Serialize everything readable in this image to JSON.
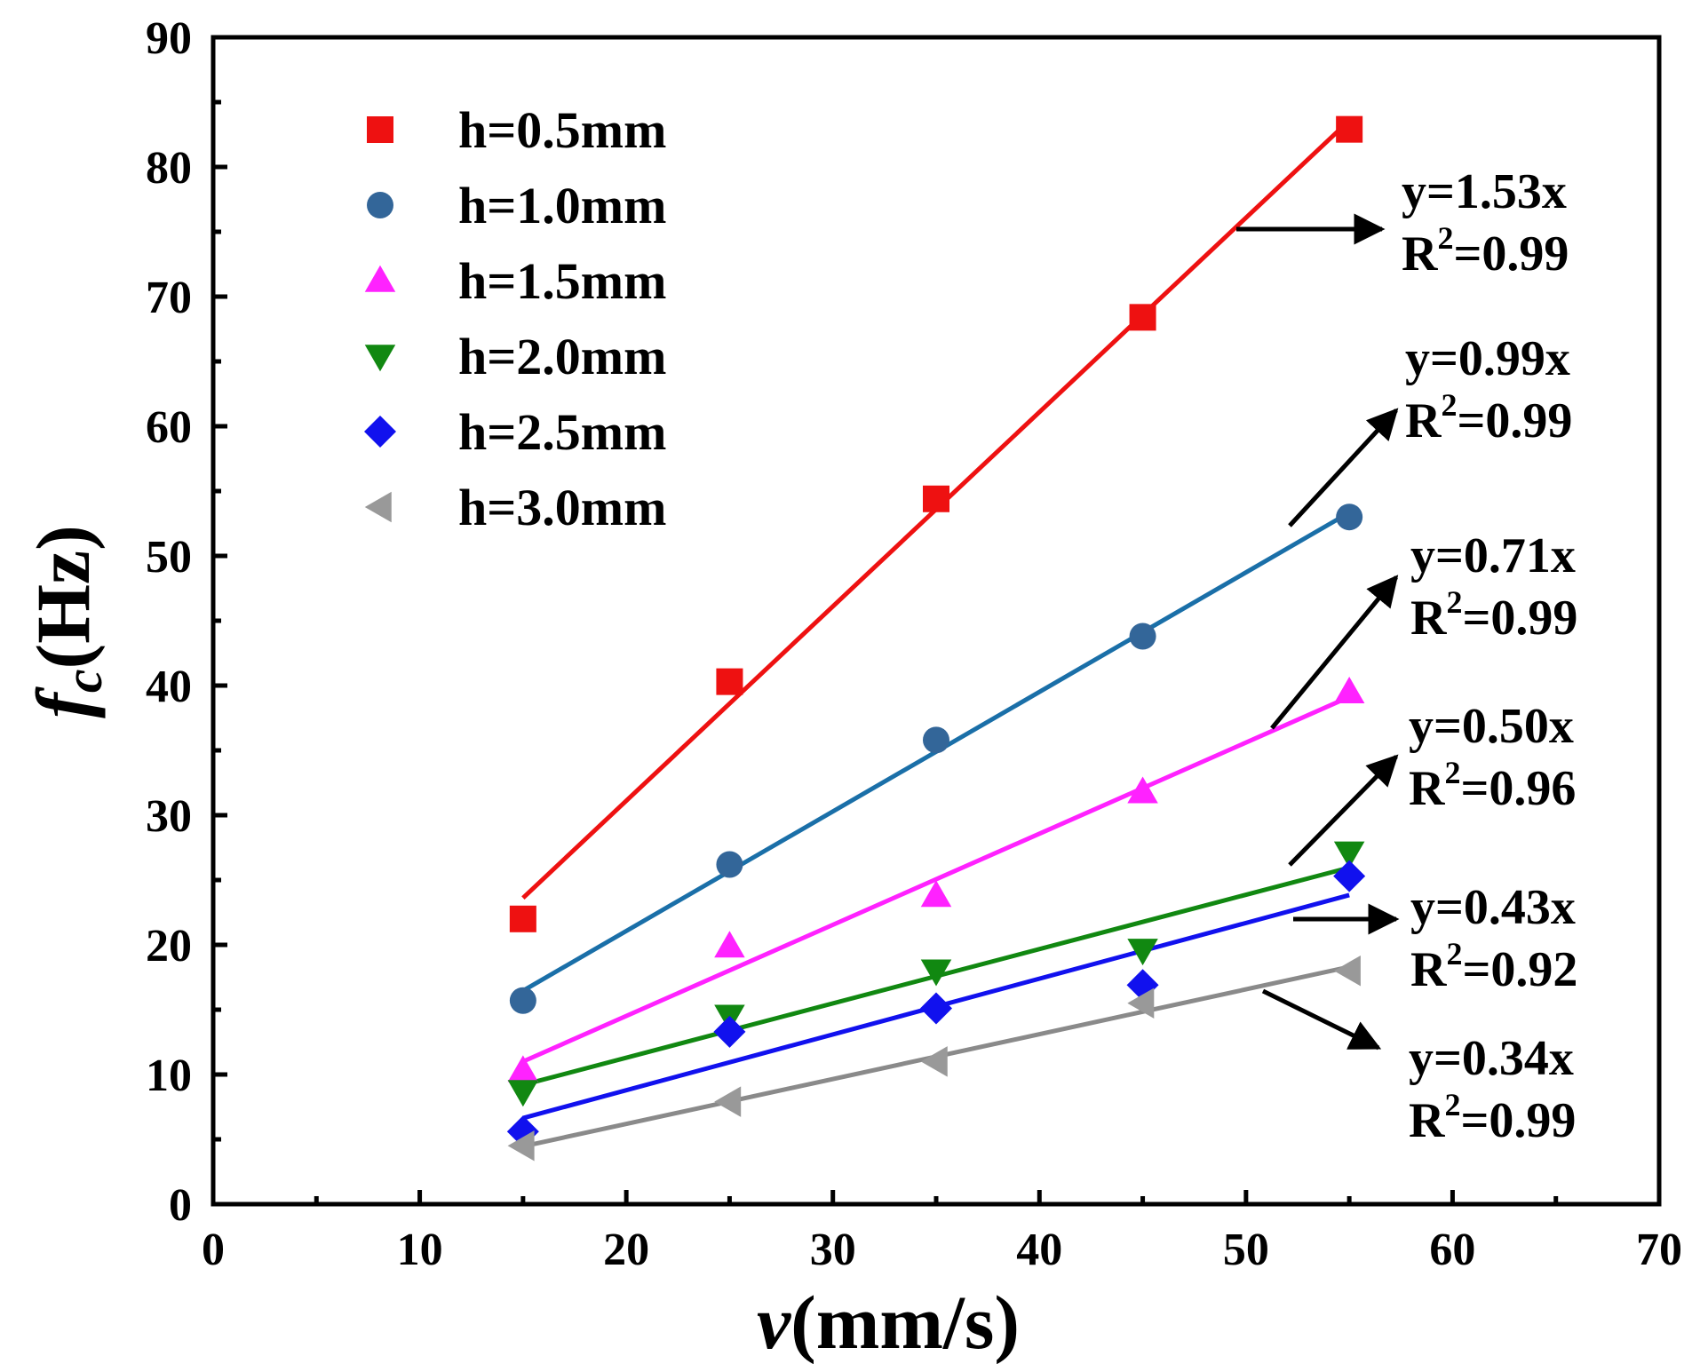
{
  "chart_data": {
    "type": "scatter",
    "title": "",
    "xlabel": {
      "var": "v",
      "unit": "(mm/s)"
    },
    "ylabel": {
      "var": "f",
      "sub": "c",
      "unit": "(Hz)"
    },
    "xlim": [
      0,
      70
    ],
    "ylim": [
      0,
      90
    ],
    "xticks": [
      0,
      10,
      20,
      30,
      40,
      50,
      60,
      70
    ],
    "yticks": [
      0,
      10,
      20,
      30,
      40,
      50,
      60,
      70,
      80,
      90
    ],
    "xtick_labels": [
      "0",
      "10",
      "20",
      "30",
      "40",
      "50",
      "60",
      "70"
    ],
    "ytick_labels": [
      "0",
      "10",
      "20",
      "30",
      "40",
      "50",
      "60",
      "70",
      "80",
      "90"
    ],
    "grid": false,
    "legend_position": "top-left",
    "x": [
      15,
      25,
      35,
      45,
      55
    ],
    "series": [
      {
        "name": "h=0.5mm",
        "marker": "square",
        "color": "#ee1111",
        "line_color": "#ee1111",
        "values": [
          22.0,
          40.3,
          54.4,
          68.4,
          82.9
        ],
        "fit_slope": 1.53,
        "fit_label": "y=1.53x",
        "r2_label": "R",
        "r2_value": "=0.99"
      },
      {
        "name": "h=1.0mm",
        "marker": "circle",
        "color": "#336699",
        "line_color": "#1a6fa8",
        "values": [
          15.7,
          26.2,
          35.8,
          43.8,
          53.0
        ],
        "fit_slope": 0.99,
        "fit_label": "y=0.99x",
        "r2_label": "R",
        "r2_value": "=0.99"
      },
      {
        "name": "h=1.5mm",
        "marker": "triangle-up",
        "color": "#ff22ff",
        "line_color": "#ff22ff",
        "values": [
          10.3,
          19.9,
          23.8,
          31.8,
          39.5
        ],
        "fit_slope": 0.71,
        "fit_label": "y=0.71x",
        "r2_label": "R",
        "r2_value": "=0.99"
      },
      {
        "name": "h=2.0mm",
        "marker": "triangle-down",
        "color": "#118811",
        "line_color": "#118811",
        "values": [
          8.7,
          14.5,
          18.0,
          19.6,
          27.1
        ],
        "fit_slope": 0.5,
        "fit_label": "y=0.50x",
        "r2_label": "R",
        "r2_value": "=0.96"
      },
      {
        "name": "h=2.5mm",
        "marker": "diamond",
        "color": "#1111ee",
        "line_color": "#1111ee",
        "values": [
          5.6,
          13.3,
          15.1,
          16.9,
          25.3
        ],
        "fit_slope": 0.43,
        "fit_label": "y=0.43x",
        "r2_label": "R",
        "r2_value": "=0.92"
      },
      {
        "name": "h=3.0mm",
        "marker": "triangle-left",
        "color": "#999999",
        "line_color": "#8a8a8a",
        "values": [
          4.5,
          7.9,
          11.0,
          15.5,
          18.0
        ],
        "fit_slope": 0.34,
        "fit_label": "y=0.34x",
        "r2_label": "R",
        "r2_value": "=0.99"
      }
    ]
  }
}
